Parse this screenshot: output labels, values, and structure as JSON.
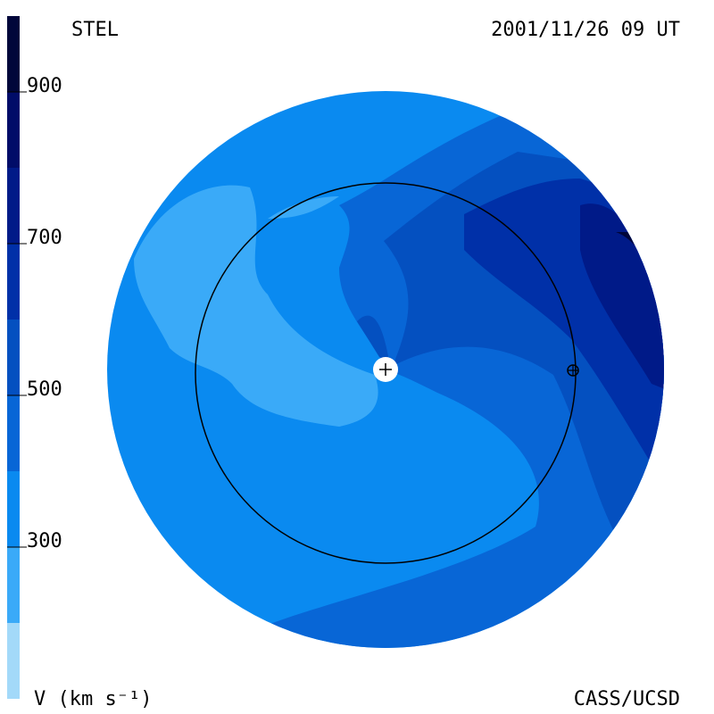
{
  "header": {
    "left": "STEL",
    "right": "2001/11/26 09 UT"
  },
  "footer": {
    "right": "CASS/UCSD"
  },
  "colorbar": {
    "label": "V (km s⁻¹)",
    "lim": [
      100,
      1000
    ],
    "ticks": [
      300,
      500,
      700,
      900
    ],
    "levels": [
      100,
      200,
      300,
      400,
      500,
      600,
      700,
      800,
      900,
      1000
    ],
    "colors": [
      "#a3d9f9",
      "#3aaaf8",
      "#0a8af0",
      "#0866d6",
      "#0450c0",
      "#0030a8",
      "#001a88",
      "#000c68",
      "#00063a"
    ]
  }
}
